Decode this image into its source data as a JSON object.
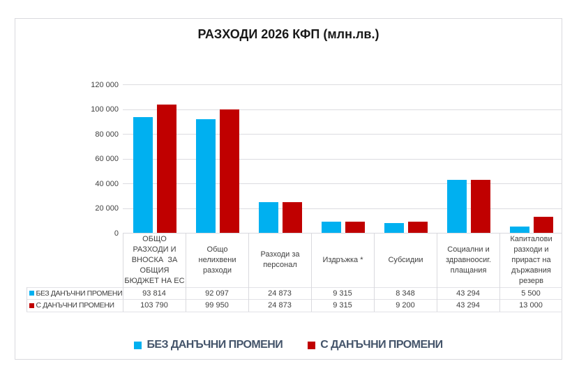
{
  "chart_data": {
    "type": "bar",
    "title": "РАЗХОДИ 2026 КФП (млн.лв.)",
    "categories": [
      "ОБЩО РАЗХОДИ И ВНОСКА  ЗА ОБЩИЯ БЮДЖЕТ НА ЕС",
      "Общо нелихвени разходи",
      "Разходи за персонал",
      "Издръжка *",
      "Субсидии",
      "Социални и здравноосиг. плащания",
      "Капиталови разходи и прираст на държавния резерв"
    ],
    "category_label_lines": [
      [
        "ОБЩО",
        "РАЗХОДИ И",
        "ВНОСКА  ЗА",
        "ОБЩИЯ",
        "БЮДЖЕТ НА ЕС"
      ],
      [
        "Общо",
        "нелихвени",
        "разходи"
      ],
      [
        "Разходи за",
        "персонал"
      ],
      [
        "Издръжка *"
      ],
      [
        "Субсидии"
      ],
      [
        "Социални и",
        "здравноосиг.",
        "плащания"
      ],
      [
        "Капиталови",
        "разходи и",
        "прираст на",
        "държавния",
        "резерв"
      ]
    ],
    "series": [
      {
        "name": "БЕЗ ДАНЪЧНИ ПРОМЕНИ",
        "color": "#00b0f0",
        "values": [
          93814,
          92097,
          24873,
          9315,
          8348,
          43294,
          5500
        ],
        "display_values": [
          "93 814",
          "92 097",
          "24 873",
          "9 315",
          "8 348",
          "43 294",
          "5 500"
        ]
      },
      {
        "name": "С ДАНЪЧНИ ПРОМЕНИ",
        "color": "#c00000",
        "values": [
          103790,
          99950,
          24873,
          9315,
          9200,
          43294,
          13000
        ],
        "display_values": [
          "103 790",
          "99 950",
          "24 873",
          "9 315",
          "9 200",
          "43 294",
          "13 000"
        ]
      }
    ],
    "ylim": [
      0,
      120000
    ],
    "ytick_step": 20000,
    "ytick_labels": [
      "0",
      "20 000",
      "40 000",
      "60 000",
      "80 000",
      "100 000",
      "120 000"
    ],
    "grid": true,
    "legend_position": "bottom",
    "data_table": true
  }
}
